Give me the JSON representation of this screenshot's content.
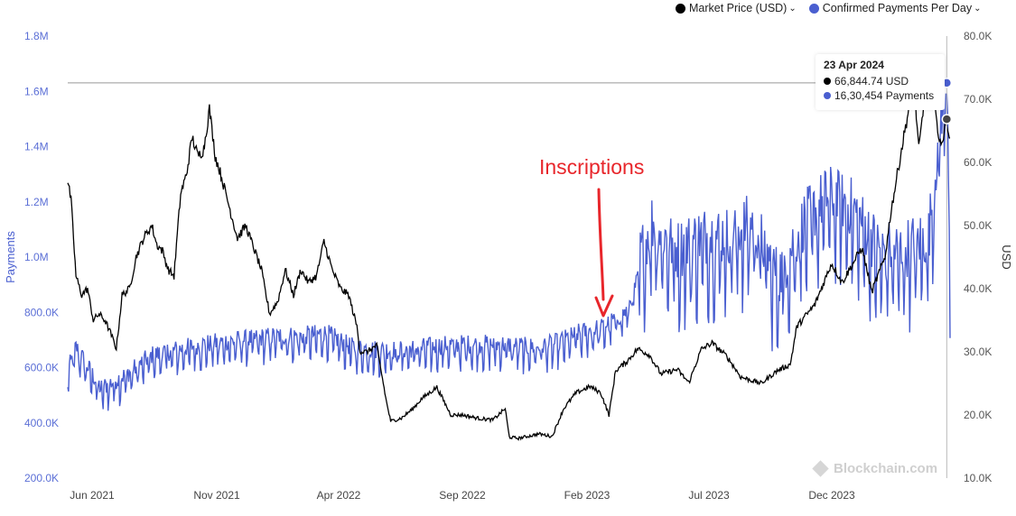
{
  "chart_data": {
    "type": "line",
    "legend": {
      "items": [
        {
          "label": "Market Price (USD)",
          "color": "#000000"
        },
        {
          "label": "Confirmed Payments Per Day",
          "color": "#4a5fd0"
        }
      ],
      "placement": "top-right"
    },
    "x_ticks": [
      "Jun 2021",
      "Nov 2021",
      "Apr 2022",
      "Sep 2022",
      "Feb 2023",
      "Jul 2023",
      "Dec 2023"
    ],
    "x_range": [
      "2021-05-22",
      "2024-04-27"
    ],
    "y_left": {
      "label": "Payments",
      "range": [
        200000,
        1800000
      ],
      "ticks": [
        "200.0K",
        "400.0K",
        "600.0K",
        "800.0K",
        "1.0M",
        "1.2M",
        "1.4M",
        "1.6M",
        "1.8M"
      ]
    },
    "y_right": {
      "label": "USD",
      "range": [
        10000,
        80000
      ],
      "ticks": [
        "10.0K",
        "20.0K",
        "30.0K",
        "40.0K",
        "50.0K",
        "60.0K",
        "70.0K",
        "80.0K"
      ]
    },
    "grid": false,
    "series": [
      {
        "name": "Market Price (USD)",
        "axis": "right",
        "color": "#000000",
        "points": [
          [
            "2021-05-22",
            57000
          ],
          [
            "2021-05-26",
            54000
          ],
          [
            "2021-06-01",
            42000
          ],
          [
            "2021-06-08",
            39000
          ],
          [
            "2021-06-15",
            40000
          ],
          [
            "2021-06-22",
            35000
          ],
          [
            "2021-06-29",
            36000
          ],
          [
            "2021-07-06",
            35000
          ],
          [
            "2021-07-13",
            33000
          ],
          [
            "2021-07-20",
            30500
          ],
          [
            "2021-07-27",
            39000
          ],
          [
            "2021-08-05",
            40000
          ],
          [
            "2021-08-13",
            45000
          ],
          [
            "2021-08-22",
            48000
          ],
          [
            "2021-09-01",
            50000
          ],
          [
            "2021-09-07",
            47000
          ],
          [
            "2021-09-14",
            46000
          ],
          [
            "2021-09-21",
            43000
          ],
          [
            "2021-09-28",
            42000
          ],
          [
            "2021-10-06",
            55000
          ],
          [
            "2021-10-13",
            58000
          ],
          [
            "2021-10-20",
            64000
          ],
          [
            "2021-10-27",
            61000
          ],
          [
            "2021-11-03",
            62000
          ],
          [
            "2021-11-10",
            68500
          ],
          [
            "2021-11-17",
            61000
          ],
          [
            "2021-11-24",
            58000
          ],
          [
            "2021-12-04",
            53000
          ],
          [
            "2021-12-14",
            48000
          ],
          [
            "2021-12-24",
            50000
          ],
          [
            "2022-01-04",
            46000
          ],
          [
            "2022-01-12",
            43000
          ],
          [
            "2022-01-22",
            36000
          ],
          [
            "2022-02-01",
            38000
          ],
          [
            "2022-02-10",
            43000
          ],
          [
            "2022-02-20",
            39000
          ],
          [
            "2022-03-01",
            43000
          ],
          [
            "2022-03-10",
            41000
          ],
          [
            "2022-03-20",
            42000
          ],
          [
            "2022-03-29",
            47500
          ],
          [
            "2022-04-08",
            43000
          ],
          [
            "2022-04-18",
            40000
          ],
          [
            "2022-04-28",
            39000
          ],
          [
            "2022-05-08",
            34000
          ],
          [
            "2022-05-12",
            30000
          ],
          [
            "2022-05-20",
            30000
          ],
          [
            "2022-06-01",
            31000
          ],
          [
            "2022-06-13",
            22000
          ],
          [
            "2022-06-18",
            19000
          ],
          [
            "2022-07-01",
            19500
          ],
          [
            "2022-07-15",
            21000
          ],
          [
            "2022-07-25",
            22500
          ],
          [
            "2022-08-13",
            24400
          ],
          [
            "2022-08-30",
            20000
          ],
          [
            "2022-09-13",
            20000
          ],
          [
            "2022-10-01",
            19500
          ],
          [
            "2022-10-20",
            19200
          ],
          [
            "2022-11-04",
            21000
          ],
          [
            "2022-11-09",
            16500
          ],
          [
            "2022-11-20",
            16300
          ],
          [
            "2022-12-15",
            17000
          ],
          [
            "2022-12-31",
            16600
          ],
          [
            "2023-01-14",
            21000
          ],
          [
            "2023-01-29",
            23500
          ],
          [
            "2023-02-15",
            24500
          ],
          [
            "2023-02-28",
            23500
          ],
          [
            "2023-03-10",
            20000
          ],
          [
            "2023-03-18",
            27000
          ],
          [
            "2023-04-01",
            28500
          ],
          [
            "2023-04-14",
            30500
          ],
          [
            "2023-04-28",
            29500
          ],
          [
            "2023-05-12",
            26500
          ],
          [
            "2023-06-01",
            27200
          ],
          [
            "2023-06-15",
            25100
          ],
          [
            "2023-06-30",
            30400
          ],
          [
            "2023-07-13",
            31400
          ],
          [
            "2023-07-31",
            29300
          ],
          [
            "2023-08-17",
            26000
          ],
          [
            "2023-09-11",
            25000
          ],
          [
            "2023-09-30",
            27000
          ],
          [
            "2023-10-16",
            28000
          ],
          [
            "2023-10-24",
            34000
          ],
          [
            "2023-11-15",
            37500
          ],
          [
            "2023-12-05",
            44000
          ],
          [
            "2023-12-18",
            41000
          ],
          [
            "2024-01-11",
            46500
          ],
          [
            "2024-01-23",
            39500
          ],
          [
            "2024-02-08",
            45000
          ],
          [
            "2024-02-15",
            52000
          ],
          [
            "2024-02-28",
            62000
          ],
          [
            "2024-03-14",
            73000
          ],
          [
            "2024-03-20",
            62000
          ],
          [
            "2024-03-27",
            70000
          ],
          [
            "2024-04-08",
            71500
          ],
          [
            "2024-04-13",
            63000
          ],
          [
            "2024-04-19",
            64000
          ],
          [
            "2024-04-23",
            66844.74
          ],
          [
            "2024-04-27",
            63000
          ]
        ]
      },
      {
        "name": "Confirmed Payments Per Day",
        "axis": "left",
        "color": "#4a5fd0",
        "points": [
          [
            "2021-05-22",
            560000
          ],
          [
            "2021-06-01",
            650000
          ],
          [
            "2021-07-01",
            500000
          ],
          [
            "2021-08-01",
            550000
          ],
          [
            "2021-09-01",
            620000
          ],
          [
            "2021-10-01",
            640000
          ],
          [
            "2021-11-01",
            660000
          ],
          [
            "2021-12-01",
            670000
          ],
          [
            "2022-01-01",
            680000
          ],
          [
            "2022-02-01",
            690000
          ],
          [
            "2022-03-01",
            690000
          ],
          [
            "2022-04-01",
            700000
          ],
          [
            "2022-05-01",
            650000
          ],
          [
            "2022-06-01",
            640000
          ],
          [
            "2022-07-01",
            640000
          ],
          [
            "2022-08-01",
            650000
          ],
          [
            "2022-09-01",
            660000
          ],
          [
            "2022-10-01",
            660000
          ],
          [
            "2022-11-01",
            660000
          ],
          [
            "2022-12-01",
            650000
          ],
          [
            "2023-01-01",
            660000
          ],
          [
            "2023-02-01",
            700000
          ],
          [
            "2023-03-01",
            720000
          ],
          [
            "2023-04-01",
            780000
          ],
          [
            "2023-05-01",
            1050000
          ],
          [
            "2023-06-01",
            950000
          ],
          [
            "2023-07-01",
            1000000
          ],
          [
            "2023-08-01",
            1000000
          ],
          [
            "2023-09-01",
            1050000
          ],
          [
            "2023-10-01",
            850000
          ],
          [
            "2023-11-01",
            1050000
          ],
          [
            "2023-12-01",
            1150000
          ],
          [
            "2024-01-01",
            1100000
          ],
          [
            "2024-02-01",
            950000
          ],
          [
            "2024-03-01",
            950000
          ],
          [
            "2024-04-01",
            1000000
          ],
          [
            "2024-04-23",
            1630454
          ],
          [
            "2024-04-27",
            900000
          ]
        ]
      }
    ],
    "annotations": [
      {
        "text": "Inscriptions",
        "color": "#e8262b",
        "x": "2023-02-10"
      }
    ],
    "tooltip": {
      "date": "23 Apr 2024",
      "rows": [
        "66,844.74 USD",
        "16,30,454 Payments"
      ]
    },
    "watermark": "Blockchain.com"
  }
}
